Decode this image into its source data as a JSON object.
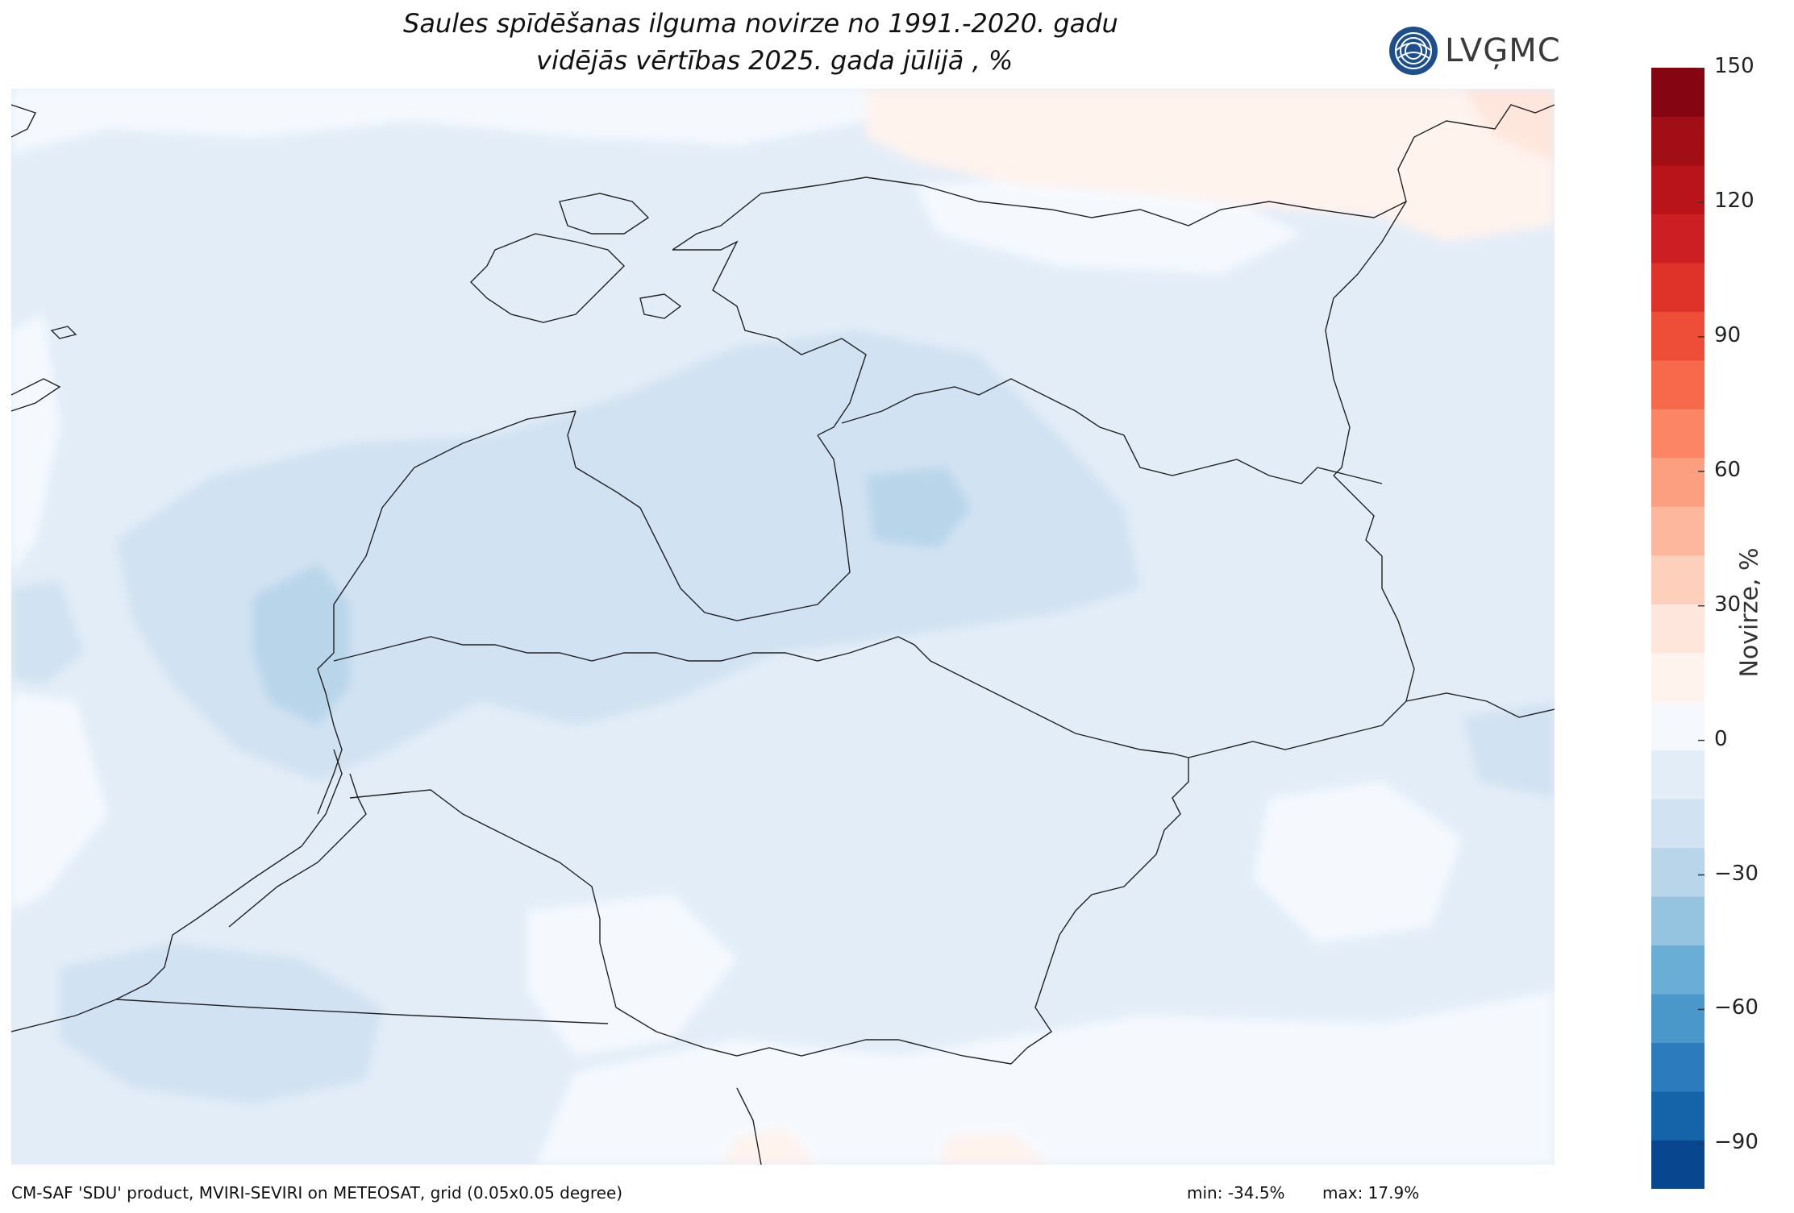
{
  "title": {
    "line1": "Saules spīdēšanas ilguma novirze no 1991.-2020. gadu",
    "line2": "vidējās vērtības 2025. gada jūlijā , %"
  },
  "logo": {
    "text": "LVĢMC",
    "icon": "lvgmc-globe-icon",
    "color": "#1d4f8c"
  },
  "colorbar": {
    "title": "Novirze, %",
    "min": -100,
    "max": 150,
    "ticks": [
      "150",
      "120",
      "90",
      "60",
      "30",
      "0",
      "−30",
      "−60",
      "−90"
    ],
    "tick_values": [
      150,
      120,
      90,
      60,
      30,
      0,
      -30,
      -60,
      -90
    ],
    "colors_bottom_to_top": [
      "#08478f",
      "#1563a9",
      "#2c7bbc",
      "#4a98c9",
      "#6aaed6",
      "#94c4df",
      "#b8d5ea",
      "#d1e2f2",
      "#e3edf8",
      "#f5f9fe",
      "#fff3ee",
      "#fee6dc",
      "#fdd0bc",
      "#fcb79c",
      "#fc9f81",
      "#fb8565",
      "#f6694b",
      "#ee4d38",
      "#df3329",
      "#cc1f23",
      "#b81419",
      "#a10e15",
      "#850612"
    ]
  },
  "footer": {
    "source": "CM-SAF 'SDU' product, MVIRI-SEVIRI on METEOSAT, grid (0.05x0.05 degree)",
    "min_label": "min: -34.5%",
    "max_label": "max: 17.9%"
  }
}
